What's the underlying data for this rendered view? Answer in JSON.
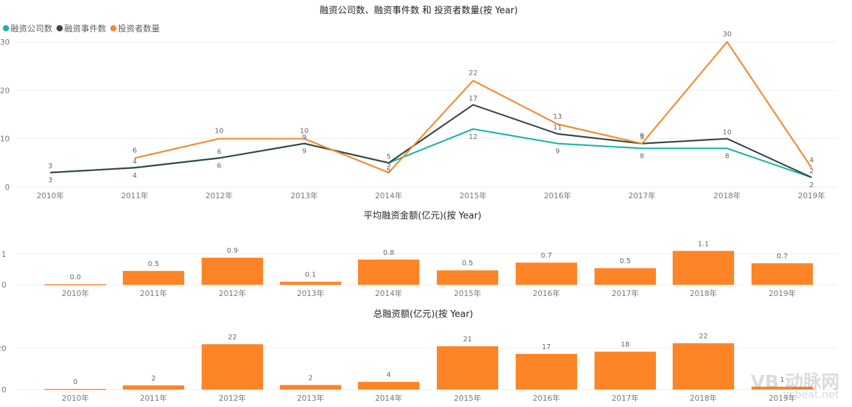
{
  "chart_data": [
    {
      "type": "line",
      "title": "融资公司数、融资事件数 和 投资者数量(按 Year)",
      "categories": [
        "2010年",
        "2011年",
        "2012年",
        "2013年",
        "2014年",
        "2015年",
        "2016年",
        "2017年",
        "2018年",
        "2019年"
      ],
      "series": [
        {
          "name": "融资公司数",
          "color": "#1ab7a6",
          "values": [
            3,
            4,
            6,
            9,
            5,
            12,
            9,
            8,
            8,
            2
          ]
        },
        {
          "name": "融资事件数",
          "color": "#374649",
          "values": [
            3,
            4,
            6,
            9,
            5,
            17,
            11,
            9,
            10,
            2
          ]
        },
        {
          "name": "投资者数量",
          "color": "#f58a2c",
          "values": [
            null,
            6,
            10,
            10,
            3,
            22,
            13,
            9,
            30,
            4
          ]
        }
      ],
      "yticks": [
        0,
        10,
        20,
        30
      ],
      "ylim": [
        0,
        30
      ],
      "legend_position": "top-left",
      "grid": true,
      "xlabel": "",
      "ylabel": ""
    },
    {
      "type": "bar",
      "title": "平均融资金额(亿元)(按 Year)",
      "categories": [
        "2010年",
        "2011年",
        "2012年",
        "2013年",
        "2014年",
        "2015年",
        "2016年",
        "2017年",
        "2018年",
        "2019年"
      ],
      "values": [
        0.02,
        0.45,
        0.88,
        0.1,
        0.82,
        0.47,
        0.72,
        0.54,
        1.1,
        0.7
      ],
      "labels": [
        "0.0",
        "0.5",
        "0.9",
        "0.1",
        "0.8",
        "0.5",
        "0.7",
        "0.5",
        "1.1",
        "0.7"
      ],
      "color": "#fd8528",
      "yticks": [
        0,
        1
      ],
      "ylim": [
        0,
        1.2
      ],
      "grid": true,
      "xlabel": "",
      "ylabel": ""
    },
    {
      "type": "bar",
      "title": "总融资额(亿元)(按 Year)",
      "categories": [
        "2010年",
        "2011年",
        "2012年",
        "2013年",
        "2014年",
        "2015年",
        "2016年",
        "2017年",
        "2018年",
        "2019年"
      ],
      "values": [
        0.3,
        2,
        22,
        2.2,
        3.7,
        21,
        17.3,
        18.4,
        22.5,
        1.4
      ],
      "labels": [
        "0",
        "2",
        "22",
        "2",
        "4",
        "21",
        "17",
        "18",
        "22",
        "1"
      ],
      "color": "#fd8528",
      "yticks": [
        0,
        20
      ],
      "ylim": [
        0,
        25
      ],
      "grid": true,
      "xlabel": "",
      "ylabel": ""
    }
  ],
  "watermark": {
    "name": "动脉网",
    "logo": "VB",
    "site": "vcbeat.net"
  }
}
